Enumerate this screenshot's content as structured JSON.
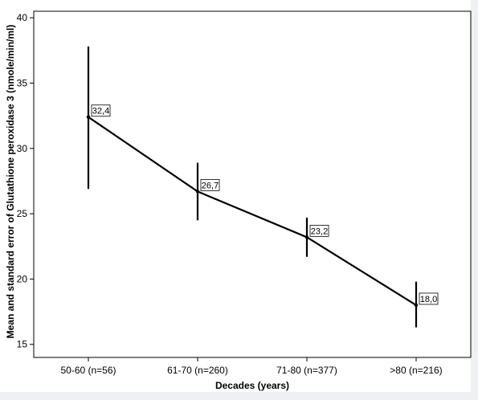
{
  "chart_data": {
    "type": "line",
    "xlabel": "Decades (years)",
    "ylabel": "Mean and standard error of Glutathione peroxidase 3 (nmole/min/ml)",
    "categories": [
      "50-60 (n=56)",
      "61-70 (n=260)",
      "71-80 (n=377)",
      ">80 (n=216)"
    ],
    "values": [
      32.4,
      26.7,
      23.2,
      18.0
    ],
    "data_labels": [
      "32,4",
      "26,7",
      "23,2",
      "18,0"
    ],
    "error_low": [
      26.9,
      24.5,
      21.7,
      16.3
    ],
    "error_high": [
      37.8,
      28.9,
      24.7,
      19.8
    ],
    "ylim": [
      14.0,
      40.5
    ],
    "yticks": [
      15,
      20,
      25,
      30,
      35,
      40
    ],
    "ytick_labels": [
      "15",
      "20",
      "25",
      "30",
      "35",
      "40"
    ],
    "grid": false,
    "line_color": "#000000",
    "background_color": "#ffffff"
  }
}
